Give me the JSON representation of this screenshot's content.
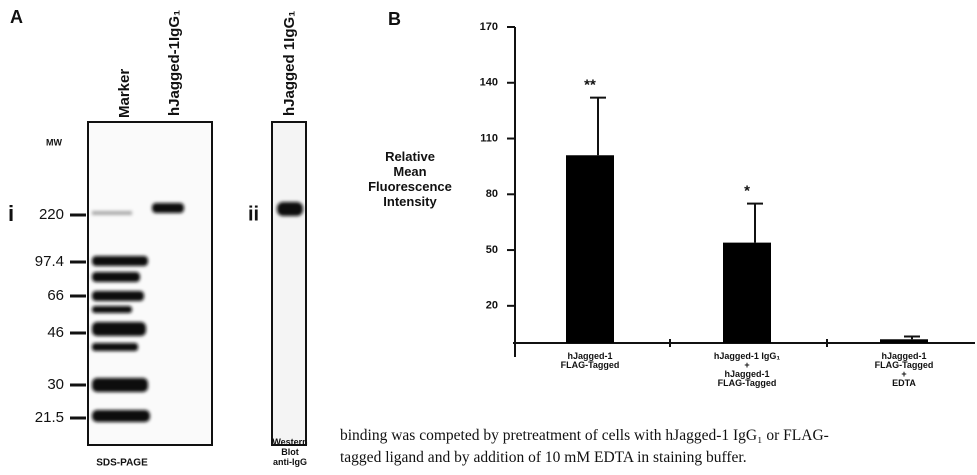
{
  "panel_a": {
    "label": "A",
    "gel_i": {
      "label": "i",
      "mw_heading": "MW",
      "lanes": [
        "Marker",
        "hJagged-1IgG₁"
      ],
      "mw_labels": [
        "220",
        "97.4",
        "66",
        "46",
        "30",
        "21.5"
      ],
      "caption": "SDS-PAGE"
    },
    "gel_ii": {
      "label": "ii",
      "lanes": [
        "hJagged 1IgG₁"
      ],
      "caption": "Western\nBlot\nanti-IgG"
    }
  },
  "chart_data": {
    "type": "bar",
    "panel_label": "B",
    "ylabel": "Relative\nMean\nFluorescence\nIntensity",
    "categories": [
      "hJagged-1\nFLAG-Tagged",
      "hJagged-1 IgG₁\n+\nhJagged-1\nFLAG-Tagged",
      "hJagged-1\nFLAG-Tagged\n+\nEDTA"
    ],
    "values": [
      101,
      54,
      2
    ],
    "errors": [
      31,
      21,
      1.5
    ],
    "annotations": [
      "**",
      "*",
      null
    ],
    "color": "#000000",
    "ylim": [
      0,
      170
    ],
    "yticks": [
      20,
      50,
      80,
      110,
      140,
      170
    ]
  },
  "caption": [
    "binding was competed by pretreatment of cells with hJagged-1 IgG₁ or FLAG-",
    "tagged ligand and by addition of 10 mM EDTA in staining buffer."
  ]
}
